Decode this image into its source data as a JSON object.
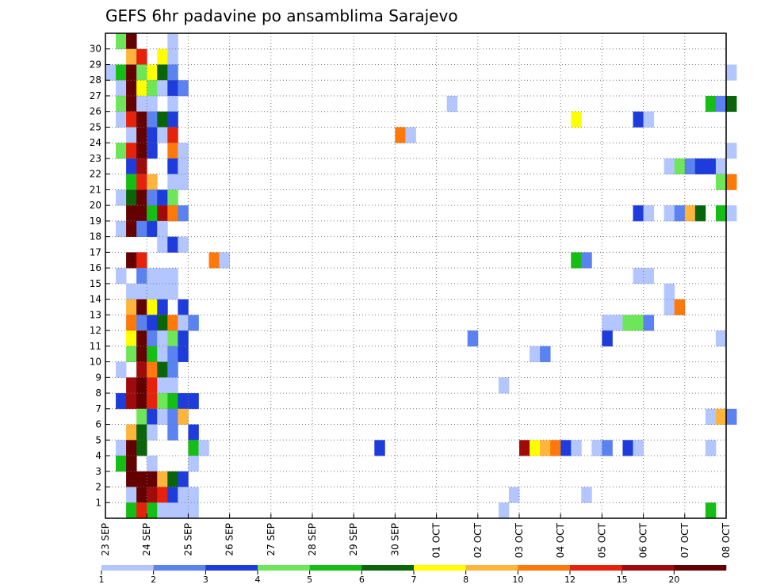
{
  "chart_data": {
    "type": "heatmap",
    "title": "GEFS 6hr padavine po ansamblima Sarajevo",
    "xlabel": "",
    "ylabel": "",
    "x_tick_labels": [
      "23 SEP",
      "24 SEP",
      "25 SEP",
      "26 SEP",
      "27 SEP",
      "28 SEP",
      "29 SEP",
      "30 SEP",
      "01 OCT",
      "02 OCT",
      "03 OCT",
      "04 OCT",
      "05 OCT",
      "06 OCT",
      "07 OCT",
      "08 OCT"
    ],
    "y_tick_labels": [
      "1",
      "2",
      "3",
      "4",
      "5",
      "6",
      "7",
      "8",
      "9",
      "10",
      "11",
      "12",
      "13",
      "14",
      "15",
      "16",
      "17",
      "18",
      "19",
      "20",
      "21",
      "22",
      "23",
      "24",
      "25",
      "26",
      "27",
      "28",
      "29",
      "30"
    ],
    "x_step_hours": 6,
    "grid": true,
    "colorbar": {
      "labels": [
        "1",
        "2",
        "3",
        "4",
        "5",
        "6",
        "7",
        "8",
        "10",
        "12",
        "15",
        "20"
      ],
      "colors": [
        "#b4c6ff",
        "#5a82f0",
        "#1e3cdc",
        "#6ee65a",
        "#14be14",
        "#0a640a",
        "#ffff00",
        "#ffb43c",
        "#ff780a",
        "#e6230a",
        "#a00a0a",
        "#640000"
      ]
    },
    "cells": [
      {
        "m": 30,
        "t": 1,
        "c": 4
      },
      {
        "m": 30,
        "t": 2,
        "c": 12
      },
      {
        "m": 30,
        "t": 6,
        "c": 1
      },
      {
        "m": 29,
        "t": 2,
        "c": 8
      },
      {
        "m": 29,
        "t": 3,
        "c": 10
      },
      {
        "m": 29,
        "t": 5,
        "c": 7
      },
      {
        "m": 29,
        "t": 6,
        "c": 1
      },
      {
        "m": 28,
        "t": 0,
        "c": 1
      },
      {
        "m": 28,
        "t": 1,
        "c": 5
      },
      {
        "m": 28,
        "t": 2,
        "c": 12
      },
      {
        "m": 28,
        "t": 3,
        "c": 4
      },
      {
        "m": 28,
        "t": 4,
        "c": 7
      },
      {
        "m": 28,
        "t": 5,
        "c": 6
      },
      {
        "m": 28,
        "t": 6,
        "c": 2
      },
      {
        "m": 28,
        "t": 60,
        "c": 1
      },
      {
        "m": 27,
        "t": 1,
        "c": 1
      },
      {
        "m": 27,
        "t": 2,
        "c": 12
      },
      {
        "m": 27,
        "t": 3,
        "c": 7
      },
      {
        "m": 27,
        "t": 4,
        "c": 4
      },
      {
        "m": 27,
        "t": 5,
        "c": 1
      },
      {
        "m": 27,
        "t": 6,
        "c": 3
      },
      {
        "m": 27,
        "t": 7,
        "c": 2
      },
      {
        "m": 26,
        "t": 1,
        "c": 4
      },
      {
        "m": 26,
        "t": 2,
        "c": 12
      },
      {
        "m": 26,
        "t": 3,
        "c": 1
      },
      {
        "m": 26,
        "t": 4,
        "c": 1
      },
      {
        "m": 26,
        "t": 6,
        "c": 1
      },
      {
        "m": 26,
        "t": 33,
        "c": 1
      },
      {
        "m": 26,
        "t": 58,
        "c": 5
      },
      {
        "m": 26,
        "t": 59,
        "c": 2
      },
      {
        "m": 26,
        "t": 60,
        "c": 6
      },
      {
        "m": 25,
        "t": 1,
        "c": 1
      },
      {
        "m": 25,
        "t": 2,
        "c": 10
      },
      {
        "m": 25,
        "t": 3,
        "c": 12
      },
      {
        "m": 25,
        "t": 4,
        "c": 2
      },
      {
        "m": 25,
        "t": 5,
        "c": 6
      },
      {
        "m": 25,
        "t": 6,
        "c": 3
      },
      {
        "m": 25,
        "t": 45,
        "c": 7
      },
      {
        "m": 25,
        "t": 51,
        "c": 3
      },
      {
        "m": 25,
        "t": 52,
        "c": 1
      },
      {
        "m": 24,
        "t": 2,
        "c": 1
      },
      {
        "m": 24,
        "t": 3,
        "c": 12
      },
      {
        "m": 24,
        "t": 4,
        "c": 3
      },
      {
        "m": 24,
        "t": 5,
        "c": 1
      },
      {
        "m": 24,
        "t": 6,
        "c": 10
      },
      {
        "m": 24,
        "t": 28,
        "c": 9
      },
      {
        "m": 24,
        "t": 29,
        "c": 1
      },
      {
        "m": 23,
        "t": 1,
        "c": 4
      },
      {
        "m": 23,
        "t": 2,
        "c": 10
      },
      {
        "m": 23,
        "t": 3,
        "c": 12
      },
      {
        "m": 23,
        "t": 4,
        "c": 3
      },
      {
        "m": 23,
        "t": 6,
        "c": 9
      },
      {
        "m": 23,
        "t": 7,
        "c": 1
      },
      {
        "m": 23,
        "t": 60,
        "c": 1
      },
      {
        "m": 22,
        "t": 2,
        "c": 3
      },
      {
        "m": 22,
        "t": 3,
        "c": 11
      },
      {
        "m": 22,
        "t": 6,
        "c": 3
      },
      {
        "m": 22,
        "t": 7,
        "c": 1
      },
      {
        "m": 22,
        "t": 54,
        "c": 1
      },
      {
        "m": 22,
        "t": 55,
        "c": 4
      },
      {
        "m": 22,
        "t": 56,
        "c": 2
      },
      {
        "m": 22,
        "t": 57,
        "c": 3
      },
      {
        "m": 22,
        "t": 58,
        "c": 3
      },
      {
        "m": 22,
        "t": 59,
        "c": 1
      },
      {
        "m": 21,
        "t": 2,
        "c": 5
      },
      {
        "m": 21,
        "t": 3,
        "c": 10
      },
      {
        "m": 21,
        "t": 4,
        "c": 8
      },
      {
        "m": 21,
        "t": 6,
        "c": 1
      },
      {
        "m": 21,
        "t": 7,
        "c": 1
      },
      {
        "m": 21,
        "t": 59,
        "c": 4
      },
      {
        "m": 21,
        "t": 60,
        "c": 9
      },
      {
        "m": 20,
        "t": 1,
        "c": 1
      },
      {
        "m": 20,
        "t": 2,
        "c": 6
      },
      {
        "m": 20,
        "t": 3,
        "c": 12
      },
      {
        "m": 20,
        "t": 4,
        "c": 2
      },
      {
        "m": 20,
        "t": 5,
        "c": 3
      },
      {
        "m": 20,
        "t": 6,
        "c": 4
      },
      {
        "m": 19,
        "t": 2,
        "c": 12
      },
      {
        "m": 19,
        "t": 3,
        "c": 12
      },
      {
        "m": 19,
        "t": 4,
        "c": 5
      },
      {
        "m": 19,
        "t": 5,
        "c": 11
      },
      {
        "m": 19,
        "t": 6,
        "c": 9
      },
      {
        "m": 19,
        "t": 7,
        "c": 2
      },
      {
        "m": 19,
        "t": 51,
        "c": 3
      },
      {
        "m": 19,
        "t": 52,
        "c": 1
      },
      {
        "m": 19,
        "t": 54,
        "c": 1
      },
      {
        "m": 19,
        "t": 55,
        "c": 2
      },
      {
        "m": 19,
        "t": 56,
        "c": 8
      },
      {
        "m": 19,
        "t": 57,
        "c": 6
      },
      {
        "m": 19,
        "t": 59,
        "c": 5
      },
      {
        "m": 19,
        "t": 60,
        "c": 1
      },
      {
        "m": 18,
        "t": 1,
        "c": 1
      },
      {
        "m": 18,
        "t": 2,
        "c": 12
      },
      {
        "m": 18,
        "t": 3,
        "c": 2
      },
      {
        "m": 18,
        "t": 4,
        "c": 3
      },
      {
        "m": 18,
        "t": 5,
        "c": 1
      },
      {
        "m": 17,
        "t": 5,
        "c": 1
      },
      {
        "m": 17,
        "t": 6,
        "c": 3
      },
      {
        "m": 17,
        "t": 7,
        "c": 1
      },
      {
        "m": 16,
        "t": 2,
        "c": 12
      },
      {
        "m": 16,
        "t": 3,
        "c": 10
      },
      {
        "m": 16,
        "t": 10,
        "c": 9
      },
      {
        "m": 16,
        "t": 11,
        "c": 1
      },
      {
        "m": 16,
        "t": 45,
        "c": 5
      },
      {
        "m": 16,
        "t": 46,
        "c": 2
      },
      {
        "m": 15,
        "t": 1,
        "c": 1
      },
      {
        "m": 15,
        "t": 3,
        "c": 2
      },
      {
        "m": 15,
        "t": 4,
        "c": 1
      },
      {
        "m": 15,
        "t": 5,
        "c": 1
      },
      {
        "m": 15,
        "t": 6,
        "c": 1
      },
      {
        "m": 15,
        "t": 51,
        "c": 1
      },
      {
        "m": 15,
        "t": 52,
        "c": 1
      },
      {
        "m": 14,
        "t": 2,
        "c": 1
      },
      {
        "m": 14,
        "t": 3,
        "c": 1
      },
      {
        "m": 14,
        "t": 4,
        "c": 1
      },
      {
        "m": 14,
        "t": 5,
        "c": 1
      },
      {
        "m": 14,
        "t": 6,
        "c": 1
      },
      {
        "m": 14,
        "t": 54,
        "c": 1
      },
      {
        "m": 13,
        "t": 2,
        "c": 8
      },
      {
        "m": 13,
        "t": 3,
        "c": 12
      },
      {
        "m": 13,
        "t": 4,
        "c": 7
      },
      {
        "m": 13,
        "t": 5,
        "c": 3
      },
      {
        "m": 13,
        "t": 7,
        "c": 3
      },
      {
        "m": 13,
        "t": 54,
        "c": 1
      },
      {
        "m": 13,
        "t": 55,
        "c": 9
      },
      {
        "m": 12,
        "t": 2,
        "c": 9
      },
      {
        "m": 12,
        "t": 3,
        "c": 2
      },
      {
        "m": 12,
        "t": 4,
        "c": 3
      },
      {
        "m": 12,
        "t": 5,
        "c": 6
      },
      {
        "m": 12,
        "t": 6,
        "c": 9
      },
      {
        "m": 12,
        "t": 7,
        "c": 1
      },
      {
        "m": 12,
        "t": 8,
        "c": 2
      },
      {
        "m": 12,
        "t": 48,
        "c": 1
      },
      {
        "m": 12,
        "t": 49,
        "c": 1
      },
      {
        "m": 12,
        "t": 50,
        "c": 4
      },
      {
        "m": 12,
        "t": 51,
        "c": 4
      },
      {
        "m": 12,
        "t": 52,
        "c": 2
      },
      {
        "m": 11,
        "t": 2,
        "c": 7
      },
      {
        "m": 11,
        "t": 3,
        "c": 12
      },
      {
        "m": 11,
        "t": 4,
        "c": 2
      },
      {
        "m": 11,
        "t": 5,
        "c": 1
      },
      {
        "m": 11,
        "t": 6,
        "c": 4
      },
      {
        "m": 11,
        "t": 7,
        "c": 3
      },
      {
        "m": 11,
        "t": 35,
        "c": 2
      },
      {
        "m": 11,
        "t": 48,
        "c": 3
      },
      {
        "m": 11,
        "t": 59,
        "c": 1
      },
      {
        "m": 10,
        "t": 2,
        "c": 4
      },
      {
        "m": 10,
        "t": 3,
        "c": 12
      },
      {
        "m": 10,
        "t": 4,
        "c": 5
      },
      {
        "m": 10,
        "t": 5,
        "c": 1
      },
      {
        "m": 10,
        "t": 6,
        "c": 2
      },
      {
        "m": 10,
        "t": 7,
        "c": 3
      },
      {
        "m": 10,
        "t": 41,
        "c": 1
      },
      {
        "m": 10,
        "t": 42,
        "c": 2
      },
      {
        "m": 9,
        "t": 1,
        "c": 1
      },
      {
        "m": 9,
        "t": 3,
        "c": 11
      },
      {
        "m": 9,
        "t": 4,
        "c": 9
      },
      {
        "m": 9,
        "t": 5,
        "c": 6
      },
      {
        "m": 9,
        "t": 6,
        "c": 2
      },
      {
        "m": 8,
        "t": 2,
        "c": 11
      },
      {
        "m": 8,
        "t": 3,
        "c": 12
      },
      {
        "m": 8,
        "t": 4,
        "c": 10
      },
      {
        "m": 8,
        "t": 5,
        "c": 1
      },
      {
        "m": 8,
        "t": 6,
        "c": 1
      },
      {
        "m": 8,
        "t": 38,
        "c": 1
      },
      {
        "m": 7,
        "t": 1,
        "c": 3
      },
      {
        "m": 7,
        "t": 2,
        "c": 11
      },
      {
        "m": 7,
        "t": 3,
        "c": 12
      },
      {
        "m": 7,
        "t": 4,
        "c": 10
      },
      {
        "m": 7,
        "t": 5,
        "c": 4
      },
      {
        "m": 7,
        "t": 6,
        "c": 5
      },
      {
        "m": 7,
        "t": 7,
        "c": 3
      },
      {
        "m": 7,
        "t": 8,
        "c": 3
      },
      {
        "m": 6,
        "t": 3,
        "c": 4
      },
      {
        "m": 6,
        "t": 4,
        "c": 3
      },
      {
        "m": 6,
        "t": 5,
        "c": 1
      },
      {
        "m": 6,
        "t": 6,
        "c": 2
      },
      {
        "m": 6,
        "t": 7,
        "c": 8
      },
      {
        "m": 6,
        "t": 58,
        "c": 1
      },
      {
        "m": 6,
        "t": 59,
        "c": 8
      },
      {
        "m": 6,
        "t": 60,
        "c": 2
      },
      {
        "m": 5,
        "t": 2,
        "c": 8
      },
      {
        "m": 5,
        "t": 3,
        "c": 6
      },
      {
        "m": 5,
        "t": 4,
        "c": 1
      },
      {
        "m": 5,
        "t": 6,
        "c": 2
      },
      {
        "m": 5,
        "t": 8,
        "c": 3
      },
      {
        "m": 4,
        "t": 1,
        "c": 1
      },
      {
        "m": 4,
        "t": 2,
        "c": 12
      },
      {
        "m": 4,
        "t": 3,
        "c": 6
      },
      {
        "m": 4,
        "t": 8,
        "c": 5
      },
      {
        "m": 4,
        "t": 9,
        "c": 1
      },
      {
        "m": 4,
        "t": 26,
        "c": 3
      },
      {
        "m": 4,
        "t": 40,
        "c": 11
      },
      {
        "m": 4,
        "t": 41,
        "c": 7
      },
      {
        "m": 4,
        "t": 42,
        "c": 8
      },
      {
        "m": 4,
        "t": 43,
        "c": 9
      },
      {
        "m": 4,
        "t": 44,
        "c": 3
      },
      {
        "m": 4,
        "t": 45,
        "c": 1
      },
      {
        "m": 4,
        "t": 47,
        "c": 1
      },
      {
        "m": 4,
        "t": 48,
        "c": 2
      },
      {
        "m": 4,
        "t": 50,
        "c": 3
      },
      {
        "m": 4,
        "t": 51,
        "c": 1
      },
      {
        "m": 4,
        "t": 58,
        "c": 1
      },
      {
        "m": 3,
        "t": 1,
        "c": 5
      },
      {
        "m": 3,
        "t": 2,
        "c": 12
      },
      {
        "m": 3,
        "t": 4,
        "c": 1
      },
      {
        "m": 3,
        "t": 8,
        "c": 1
      },
      {
        "m": 2,
        "t": 2,
        "c": 12
      },
      {
        "m": 2,
        "t": 3,
        "c": 12
      },
      {
        "m": 2,
        "t": 4,
        "c": 12
      },
      {
        "m": 2,
        "t": 5,
        "c": 8
      },
      {
        "m": 2,
        "t": 6,
        "c": 6
      },
      {
        "m": 2,
        "t": 7,
        "c": 3
      },
      {
        "m": 1,
        "t": 2,
        "c": 1
      },
      {
        "m": 1,
        "t": 3,
        "c": 12
      },
      {
        "m": 1,
        "t": 4,
        "c": 11
      },
      {
        "m": 1,
        "t": 5,
        "c": 10
      },
      {
        "m": 1,
        "t": 6,
        "c": 3
      },
      {
        "m": 1,
        "t": 7,
        "c": 1
      },
      {
        "m": 1,
        "t": 8,
        "c": 1
      },
      {
        "m": 1,
        "t": 39,
        "c": 1
      },
      {
        "m": 1,
        "t": 46,
        "c": 1
      },
      {
        "m": 0,
        "t": 2,
        "c": 5
      },
      {
        "m": 0,
        "t": 3,
        "c": 10
      },
      {
        "m": 0,
        "t": 4,
        "c": 5
      },
      {
        "m": 0,
        "t": 5,
        "c": 1
      },
      {
        "m": 0,
        "t": 6,
        "c": 1
      },
      {
        "m": 0,
        "t": 7,
        "c": 1
      },
      {
        "m": 0,
        "t": 8,
        "c": 1
      },
      {
        "m": 0,
        "t": 38,
        "c": 1
      },
      {
        "m": 0,
        "t": 58,
        "c": 5
      }
    ]
  }
}
